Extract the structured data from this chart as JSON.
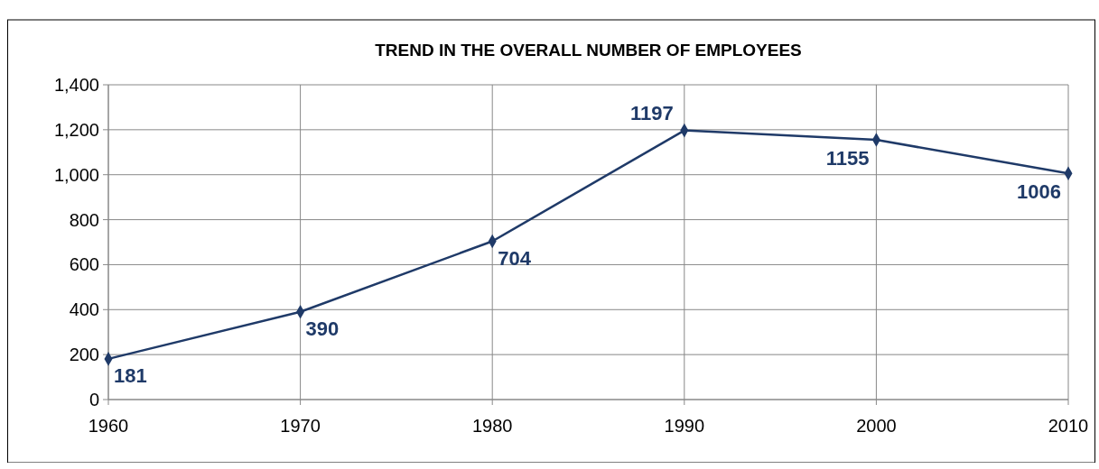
{
  "chart_data": {
    "type": "line",
    "title": "TREND IN THE OVERALL NUMBER OF EMPLOYEES",
    "categories": [
      "1960",
      "1970",
      "1980",
      "1990",
      "2000",
      "2010"
    ],
    "series": [
      {
        "color": "#1f3a68",
        "values": [
          181,
          390,
          704,
          1197,
          1155,
          1006
        ]
      }
    ],
    "ylim": [
      0,
      1400
    ],
    "yticks": [
      0,
      200,
      400,
      600,
      800,
      {
        "value": 1000,
        "label": "1,000"
      },
      {
        "value": 1200,
        "label": "1,200"
      },
      {
        "value": 1400,
        "label": "1,400"
      }
    ],
    "grid": true,
    "marker": "diamond",
    "line_style": "solid",
    "data_labels": true
  }
}
